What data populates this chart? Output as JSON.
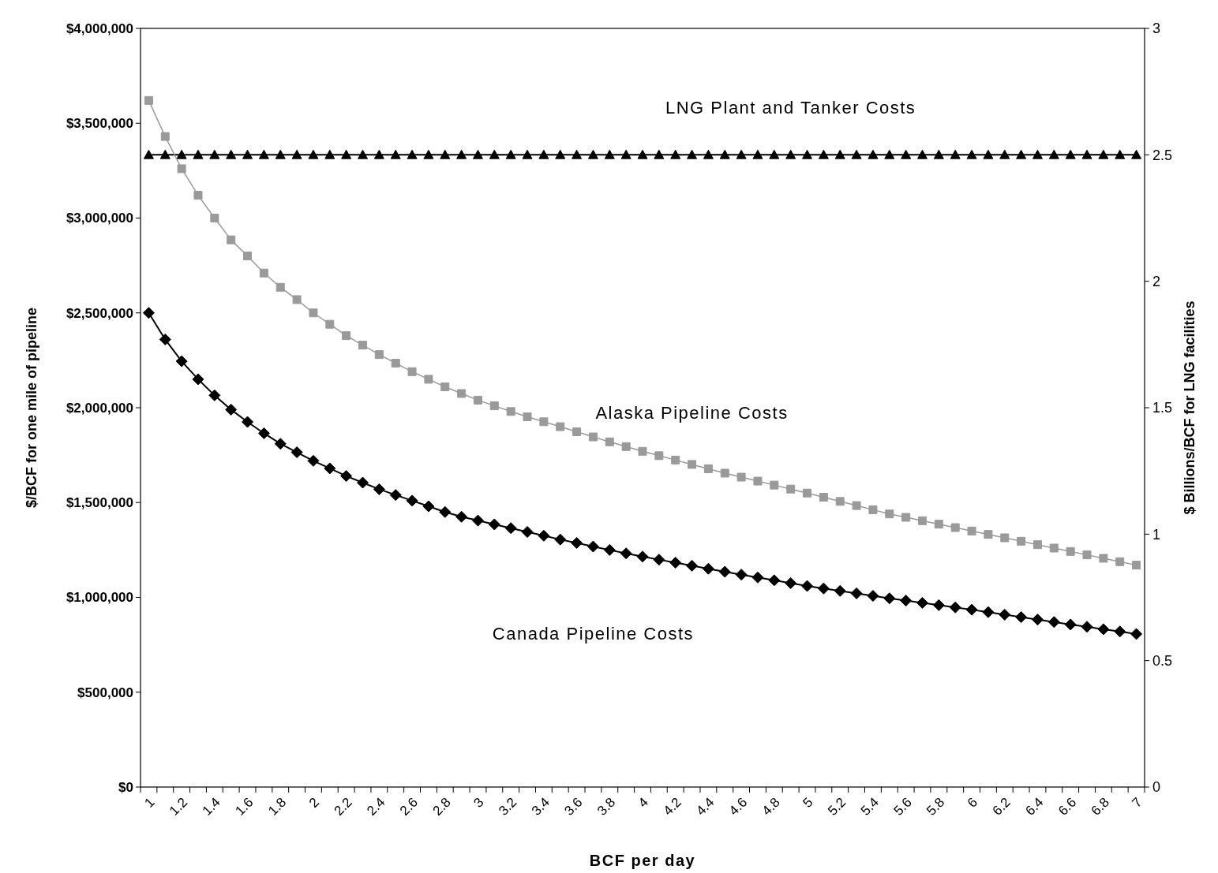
{
  "chart_data": {
    "type": "line",
    "xlabel": "BCF per day",
    "ylabel": "$/BCF for one mile of pipeline",
    "y2label": "$ Billions/BCF for LNG facilities",
    "categories": [
      "1",
      null,
      "1.2",
      null,
      "1.4",
      null,
      "1.6",
      null,
      "1.8",
      null,
      "2",
      null,
      "2.2",
      null,
      "2.4",
      null,
      "2.6",
      null,
      "2.8",
      null,
      "3",
      null,
      "3.2",
      null,
      "3.4",
      null,
      "3.6",
      null,
      "3.8",
      null,
      "4",
      null,
      "4.2",
      null,
      "4.4",
      null,
      "4.6",
      null,
      "4.8",
      null,
      "5",
      null,
      "5.2",
      null,
      "5.4",
      null,
      "5.6",
      null,
      "5.8",
      null,
      "6",
      null,
      "6.2",
      null,
      "6.4",
      null,
      "6.6",
      null,
      "6.8",
      null,
      "7"
    ],
    "ylim": [
      0,
      4000000
    ],
    "yticks": [
      {
        "value": 0,
        "label": "$0"
      },
      {
        "value": 500000,
        "label": "$500,000"
      },
      {
        "value": 1000000,
        "label": "$1,000,000"
      },
      {
        "value": 1500000,
        "label": "$1,500,000"
      },
      {
        "value": 2000000,
        "label": "$2,000,000"
      },
      {
        "value": 2500000,
        "label": "$2,500,000"
      },
      {
        "value": 3000000,
        "label": "$3,000,000"
      },
      {
        "value": 3500000,
        "label": "$3,500,000"
      },
      {
        "value": 4000000,
        "label": "$4,000,000"
      }
    ],
    "y2lim": [
      0,
      3
    ],
    "y2ticks": [
      0,
      0.5,
      1,
      1.5,
      2,
      2.5,
      3
    ],
    "series": [
      {
        "name": "LNG Plant and Tanker Costs",
        "color": "#000000",
        "marker": "triangle",
        "axis": "y2",
        "values": [
          2.5,
          2.5,
          2.5,
          2.5,
          2.5,
          2.5,
          2.5,
          2.5,
          2.5,
          2.5,
          2.5,
          2.5,
          2.5,
          2.5,
          2.5,
          2.5,
          2.5,
          2.5,
          2.5,
          2.5,
          2.5,
          2.5,
          2.5,
          2.5,
          2.5,
          2.5,
          2.5,
          2.5,
          2.5,
          2.5,
          2.5,
          2.5,
          2.5,
          2.5,
          2.5,
          2.5,
          2.5,
          2.5,
          2.5,
          2.5,
          2.5,
          2.5,
          2.5,
          2.5,
          2.5,
          2.5,
          2.5,
          2.5,
          2.5,
          2.5,
          2.5,
          2.5,
          2.5,
          2.5,
          2.5,
          2.5,
          2.5,
          2.5,
          2.5,
          2.5,
          2.5
        ]
      },
      {
        "name": "Alaska Pipeline Costs",
        "color": "#9a9a9a",
        "marker": "square",
        "values": [
          3620000,
          3430000,
          3260000,
          3120000,
          3000000,
          2885000,
          2800000,
          2710000,
          2635000,
          2570000,
          2500000,
          2440000,
          2380000,
          2330000,
          2280000,
          2235000,
          2190000,
          2150000,
          2110000,
          2075000,
          2040000,
          2010000,
          1980000,
          1952000,
          1926000,
          1900000,
          1873000,
          1846000,
          1820000,
          1795000,
          1770000,
          1747000,
          1724000,
          1701000,
          1678000,
          1655000,
          1634000,
          1613000,
          1592000,
          1571000,
          1550000,
          1528000,
          1506000,
          1484000,
          1462000,
          1440000,
          1422000,
          1404000,
          1386000,
          1368000,
          1350000,
          1332000,
          1314000,
          1296000,
          1278000,
          1260000,
          1242000,
          1224000,
          1206000,
          1188000,
          1170000
        ]
      },
      {
        "name": "Canada Pipeline Costs",
        "color": "#000000",
        "marker": "diamond",
        "values": [
          2500000,
          2360000,
          2245000,
          2150000,
          2065000,
          1990000,
          1925000,
          1865000,
          1810000,
          1765000,
          1720000,
          1680000,
          1640000,
          1605000,
          1570000,
          1540000,
          1510000,
          1480000,
          1450000,
          1425000,
          1405000,
          1385000,
          1365000,
          1345000,
          1325000,
          1305000,
          1287000,
          1268000,
          1250000,
          1232000,
          1215000,
          1199000,
          1183000,
          1167000,
          1151000,
          1135000,
          1120000,
          1105000,
          1090000,
          1075000,
          1060000,
          1047000,
          1034000,
          1021000,
          1008000,
          995000,
          983000,
          971000,
          959000,
          947000,
          935000,
          922000,
          909000,
          896000,
          883000,
          870000,
          857000,
          845000,
          832000,
          820000,
          807000
        ]
      }
    ]
  }
}
